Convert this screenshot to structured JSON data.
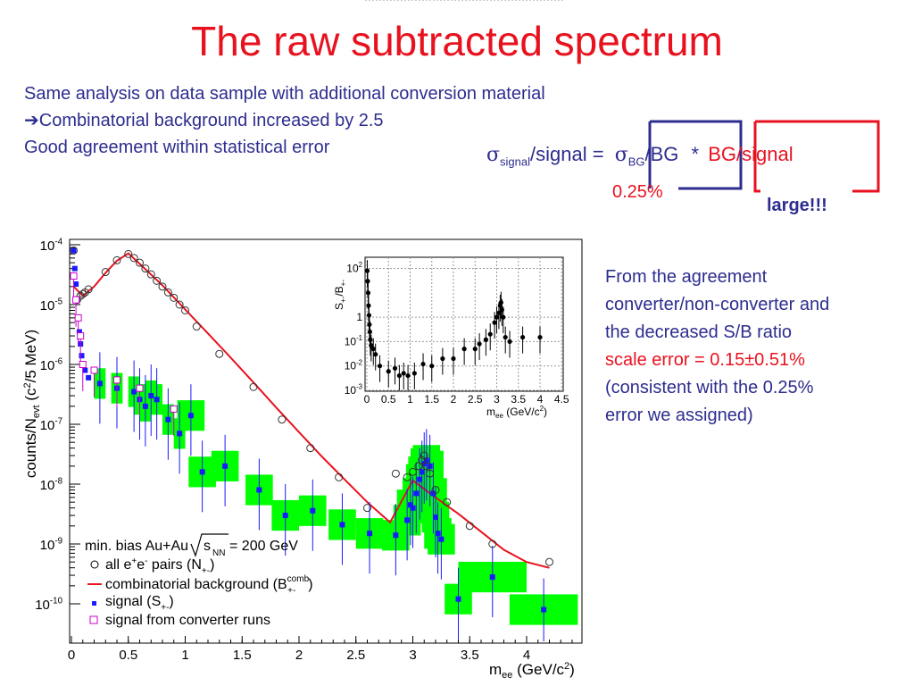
{
  "title": "The raw subtracted spectrum",
  "intro": [
    "Same analysis on data sample with additional conversion material",
    "Combinatorial background increased by 2.5",
    "Good agreement within statistical error"
  ],
  "formula": {
    "sigma_signal": "signal",
    "signal": "/signal =",
    "sigma_bg": "BG",
    "bg": "/BG",
    "times": "*",
    "bg_signal": "BG/signal",
    "pct": "0.25%",
    "large": "large!!!"
  },
  "right_text": [
    "From the agreement",
    "converter/non-converter and",
    "the decreased S/B ratio",
    "scale error = 0.15±0.51%",
    "(consistent with the 0.25%",
    "error we assigned)"
  ],
  "colors": {
    "title": "#e8121f",
    "text": "#2d2d8f",
    "curve": "#e8121f",
    "box": "#00ff00",
    "signal": "#1a1aff",
    "converter": "#cc00cc"
  },
  "chart_data": [
    {
      "type": "scatter",
      "log_y": true,
      "xlabel": "m_ee (GeV/c²)",
      "ylabel": "counts/N_evt (c²/5 MeV)",
      "xlim": [
        0,
        4.5
      ],
      "ylim": [
        5e-11,
        0.0001
      ],
      "x_ticks": [
        "0",
        "0.5",
        "1",
        "1.5",
        "2",
        "2.5",
        "3",
        "3.5",
        "4"
      ],
      "y_ticks": [
        "10-10",
        "10-9",
        "10-8",
        "10-7",
        "10-6",
        "10-5",
        "10-4"
      ],
      "legend": {
        "placement": "bottom-left",
        "header": "min. bias Au+Au √s_NN = 200 GeV",
        "entries": [
          "all e⁺e⁻ pairs (N₊₋)",
          "combinatorial background (B₊₋^comb)",
          "signal (S₊₋)",
          "signal from converter runs"
        ]
      },
      "series": [
        {
          "name": "all e+e- pairs",
          "marker": "open-circle",
          "x": [
            0.02,
            0.05,
            0.08,
            0.1,
            0.12,
            0.15,
            0.3,
            0.4,
            0.5,
            0.55,
            0.6,
            0.65,
            0.7,
            0.75,
            0.8,
            0.85,
            0.9,
            0.95,
            1.0,
            1.1,
            1.3,
            1.6,
            1.85,
            2.1,
            2.35,
            2.6,
            2.85,
            2.95,
            3.0,
            3.05,
            3.08,
            3.1,
            3.12,
            3.15,
            3.2,
            3.3,
            3.5,
            3.7,
            4.2
          ],
          "y": [
            8e-05,
            1.2e-05,
            1.4e-05,
            1.5e-05,
            1.6e-05,
            1.8e-05,
            3.5e-05,
            5.5e-05,
            7e-05,
            6e-05,
            5e-05,
            4e-05,
            3.2e-05,
            2.5e-05,
            2e-05,
            1.6e-05,
            1.3e-05,
            1e-05,
            8e-06,
            4.3e-06,
            1.5e-06,
            4.2e-07,
            1.2e-07,
            4e-08,
            1.3e-08,
            4e-09,
            1.5e-08,
            1.3e-08,
            1.6e-08,
            2e-08,
            2.5e-08,
            3e-08,
            2e-08,
            1.5e-08,
            8e-09,
            5e-09,
            2e-09,
            1e-09,
            5e-10
          ]
        },
        {
          "name": "combinatorial background",
          "marker": "line",
          "x": [
            0.02,
            0.1,
            0.2,
            0.3,
            0.4,
            0.5,
            0.6,
            0.8,
            1.0,
            1.2,
            1.4,
            1.6,
            1.8,
            2.0,
            2.2,
            2.4,
            2.6,
            2.8,
            3.0,
            3.2,
            3.4,
            3.6,
            3.8,
            4.0,
            4.2
          ],
          "y": [
            2e-05,
            1.4e-05,
            2e-05,
            3.4e-05,
            5.4e-05,
            7.2e-05,
            4.8e-05,
            2.1e-05,
            8.3e-06,
            3.3e-06,
            1.3e-06,
            5e-07,
            1.9e-07,
            7.4e-08,
            2.9e-08,
            1.2e-08,
            5e-09,
            2.3e-09,
            1.15e-08,
            6e-09,
            3.2e-09,
            1.6e-09,
            8e-10,
            5e-10,
            4e-10
          ]
        },
        {
          "name": "signal",
          "marker": "filled-square",
          "x": [
            0.02,
            0.03,
            0.04,
            0.05,
            0.06,
            0.07,
            0.08,
            0.09,
            0.1,
            0.12,
            0.15,
            0.25,
            0.4,
            0.55,
            0.6,
            0.65,
            0.7,
            0.75,
            0.85,
            0.95,
            1.05,
            1.15,
            1.35,
            1.65,
            1.88,
            2.12,
            2.38,
            2.62,
            2.85,
            2.95,
            2.98,
            3.0,
            3.03,
            3.06,
            3.08,
            3.1,
            3.12,
            3.15,
            3.18,
            3.2,
            3.22,
            3.25,
            3.4,
            3.7,
            4.15
          ],
          "y": [
            8e-05,
            4e-05,
            2.2e-05,
            1.2e-05,
            6e-06,
            3.5e-06,
            2.2e-06,
            1.4e-06,
            1e-06,
            8e-07,
            6e-07,
            4.8e-07,
            4e-07,
            3.5e-07,
            2.6e-07,
            2e-07,
            3e-07,
            2.6e-07,
            1.2e-07,
            7e-08,
            1.4e-07,
            1.6e-08,
            2e-08,
            8e-09,
            3e-09,
            3.6e-09,
            2.1e-09,
            1.5e-09,
            1.4e-09,
            2.5e-09,
            4.5e-09,
            4e-09,
            7e-09,
            1.2e-08,
            1.6e-08,
            2.2e-08,
            2.5e-08,
            2e-08,
            7e-09,
            2.8e-09,
            1.5e-09,
            1.2e-09,
            1.2e-10,
            2.8e-10,
            8e-11
          ]
        },
        {
          "name": "signal from converter runs",
          "marker": "open-square",
          "x": [
            0.02,
            0.04,
            0.06,
            0.08,
            0.1,
            0.2,
            0.4,
            0.6,
            0.9
          ],
          "y": [
            3e-05,
            1.2e-05,
            6e-06,
            3e-06,
            1e-06,
            8e-07,
            5.5e-07,
            4e-07,
            1.8e-07
          ]
        }
      ]
    },
    {
      "type": "scatter",
      "log_y": true,
      "xlabel": "m_ee (GeV/c²)",
      "ylabel": "S₊₋/B₊₋",
      "xlim": [
        0,
        4.5
      ],
      "ylim": [
        0.001,
        200
      ],
      "x_ticks": [
        "0",
        "0.5",
        "1",
        "1.5",
        "2",
        "2.5",
        "3",
        "3.5",
        "4",
        "4.5"
      ],
      "y_ticks": [
        "10-3",
        "10-2",
        "10-1",
        "1",
        "10",
        "102"
      ],
      "grid": true,
      "series": [
        {
          "name": "",
          "x": [
            0.01,
            0.02,
            0.03,
            0.04,
            0.05,
            0.06,
            0.07,
            0.08,
            0.1,
            0.15,
            0.2,
            0.3,
            0.5,
            0.65,
            0.75,
            0.85,
            0.95,
            1.1,
            1.3,
            1.5,
            1.75,
            2.0,
            2.25,
            2.5,
            2.6,
            2.75,
            2.85,
            2.95,
            3.0,
            3.05,
            3.08,
            3.1,
            3.12,
            3.15,
            3.2,
            3.3,
            3.6,
            4.0
          ],
          "y": [
            80,
            30,
            10,
            3,
            1.2,
            0.5,
            0.25,
            0.12,
            0.07,
            0.05,
            0.03,
            0.01,
            0.006,
            0.008,
            0.004,
            0.005,
            0.004,
            0.005,
            0.012,
            0.01,
            0.02,
            0.02,
            0.05,
            0.05,
            0.08,
            0.12,
            0.2,
            0.6,
            1,
            1.5,
            3,
            4,
            2,
            1,
            0.15,
            0.1,
            0.15,
            0.15
          ]
        }
      ]
    }
  ]
}
